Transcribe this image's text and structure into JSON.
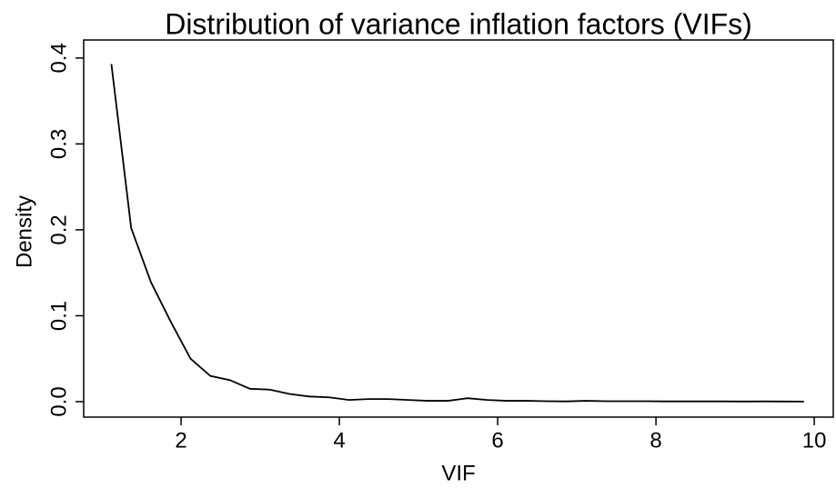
{
  "chart_data": {
    "type": "line",
    "title": "Distribution of variance inflation factors (VIFs)",
    "x_label": "VIF",
    "y_label": "Density",
    "x": [
      1.12,
      1.37,
      1.62,
      1.87,
      2.12,
      2.37,
      2.62,
      2.87,
      3.12,
      3.37,
      3.62,
      3.87,
      4.12,
      4.37,
      4.62,
      4.87,
      5.12,
      5.37,
      5.62,
      5.87,
      6.12,
      6.37,
      6.62,
      6.87,
      7.12,
      7.37,
      7.62,
      7.87,
      8.12,
      8.37,
      8.62,
      8.87,
      9.12,
      9.37,
      9.62,
      9.87
    ],
    "series": [
      {
        "name": "Density",
        "color": "#000000",
        "values": [
          0.393,
          0.202,
          0.139,
          0.093,
          0.05,
          0.03,
          0.025,
          0.015,
          0.014,
          0.009,
          0.006,
          0.005,
          0.002,
          0.003,
          0.003,
          0.002,
          0.001,
          0.001,
          0.004,
          0.002,
          0.001,
          0.001,
          0.0005,
          0.0003,
          0.001,
          0.0005,
          0.0005,
          0.0005,
          0.0003,
          0.0003,
          0.0003,
          0.0003,
          0.0002,
          0.0003,
          0.0002,
          0.0001
        ]
      }
    ],
    "xlim": [
      0.77,
      10.24
    ],
    "ylim": [
      -0.018,
      0.421
    ],
    "xticks": [
      2,
      4,
      6,
      8,
      10
    ],
    "yticks": [
      {
        "value": 0,
        "label": "0.0"
      },
      0.1,
      0.2,
      0.3,
      0.4
    ]
  }
}
